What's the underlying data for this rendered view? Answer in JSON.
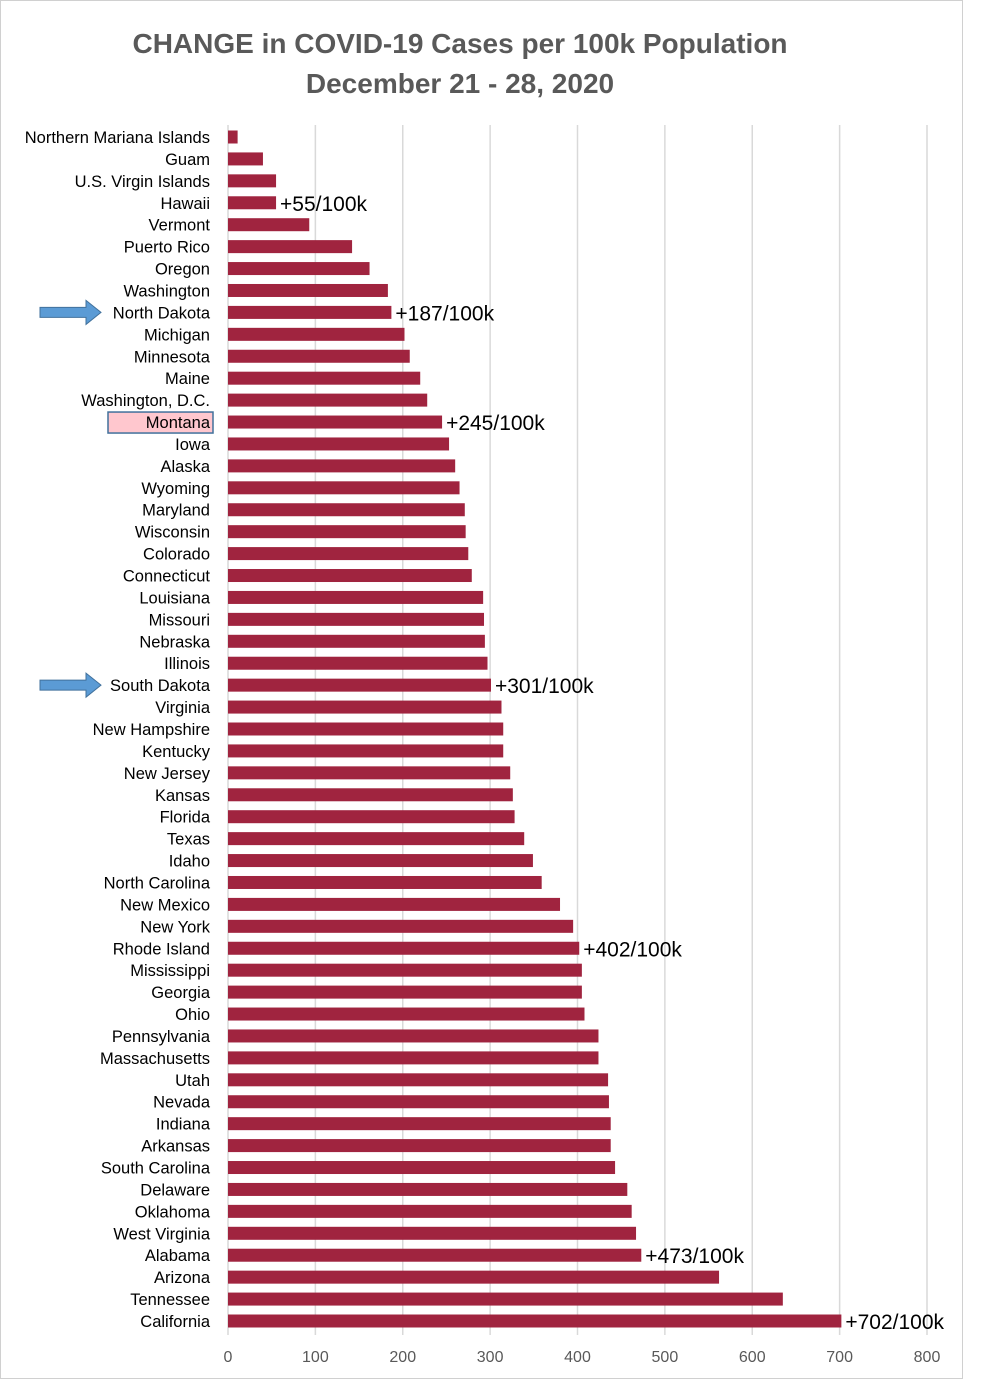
{
  "chart_data": {
    "type": "bar",
    "orientation": "horizontal",
    "title": "CHANGE in COVID-19 Cases per 100k Population",
    "subtitle": "December 21 - 28, 2020",
    "xlabel": "",
    "ylabel": "",
    "xlim": [
      0,
      800
    ],
    "xticks": [
      0,
      100,
      200,
      300,
      400,
      500,
      600,
      700,
      800
    ],
    "grid": true,
    "bar_color": "#A0243F",
    "categories": [
      "Northern Mariana Islands",
      "Guam",
      "U.S. Virgin Islands",
      "Hawaii",
      "Vermont",
      "Puerto Rico",
      "Oregon",
      "Washington",
      "North Dakota",
      "Michigan",
      "Minnesota",
      "Maine",
      "Washington, D.C.",
      "Montana",
      "Iowa",
      "Alaska",
      "Wyoming",
      "Maryland",
      "Wisconsin",
      "Colorado",
      "Connecticut",
      "Louisiana",
      "Missouri",
      "Nebraska",
      "Illinois",
      "South Dakota",
      "Virginia",
      "New Hampshire",
      "Kentucky",
      "New Jersey",
      "Kansas",
      "Florida",
      "Texas",
      "Idaho",
      "North Carolina",
      "New Mexico",
      "New York",
      "Rhode Island",
      "Mississippi",
      "Georgia",
      "Ohio",
      "Pennsylvania",
      "Massachusetts",
      "Utah",
      "Nevada",
      "Indiana",
      "Arkansas",
      "South Carolina",
      "Delaware",
      "Oklahoma",
      "West Virginia",
      "Alabama",
      "Arizona",
      "Tennessee",
      "California"
    ],
    "values": [
      11,
      40,
      55,
      55,
      93,
      142,
      162,
      183,
      187,
      202,
      208,
      220,
      228,
      245,
      253,
      260,
      265,
      271,
      272,
      275,
      279,
      292,
      293,
      294,
      297,
      301,
      313,
      315,
      315,
      323,
      326,
      328,
      339,
      349,
      359,
      380,
      395,
      402,
      405,
      405,
      408,
      424,
      424,
      435,
      436,
      438,
      438,
      443,
      457,
      462,
      467,
      473,
      562,
      635,
      702
    ],
    "annotations": [
      {
        "category": "Hawaii",
        "text": "+55/100k"
      },
      {
        "category": "North Dakota",
        "text": "+187/100k"
      },
      {
        "category": "Montana",
        "text": "+245/100k"
      },
      {
        "category": "South Dakota",
        "text": "+301/100k"
      },
      {
        "category": "Rhode Island",
        "text": "+402/100k"
      },
      {
        "category": "Alabama",
        "text": "+473/100k"
      },
      {
        "category": "California",
        "text": "+702/100k"
      }
    ],
    "arrow_markers": [
      "North Dakota",
      "South Dakota"
    ],
    "arrow_color": "#5B9BD5",
    "highlighted_category": "Montana",
    "highlight_fill": "#FFC7CE",
    "highlight_border": "#41719C"
  }
}
